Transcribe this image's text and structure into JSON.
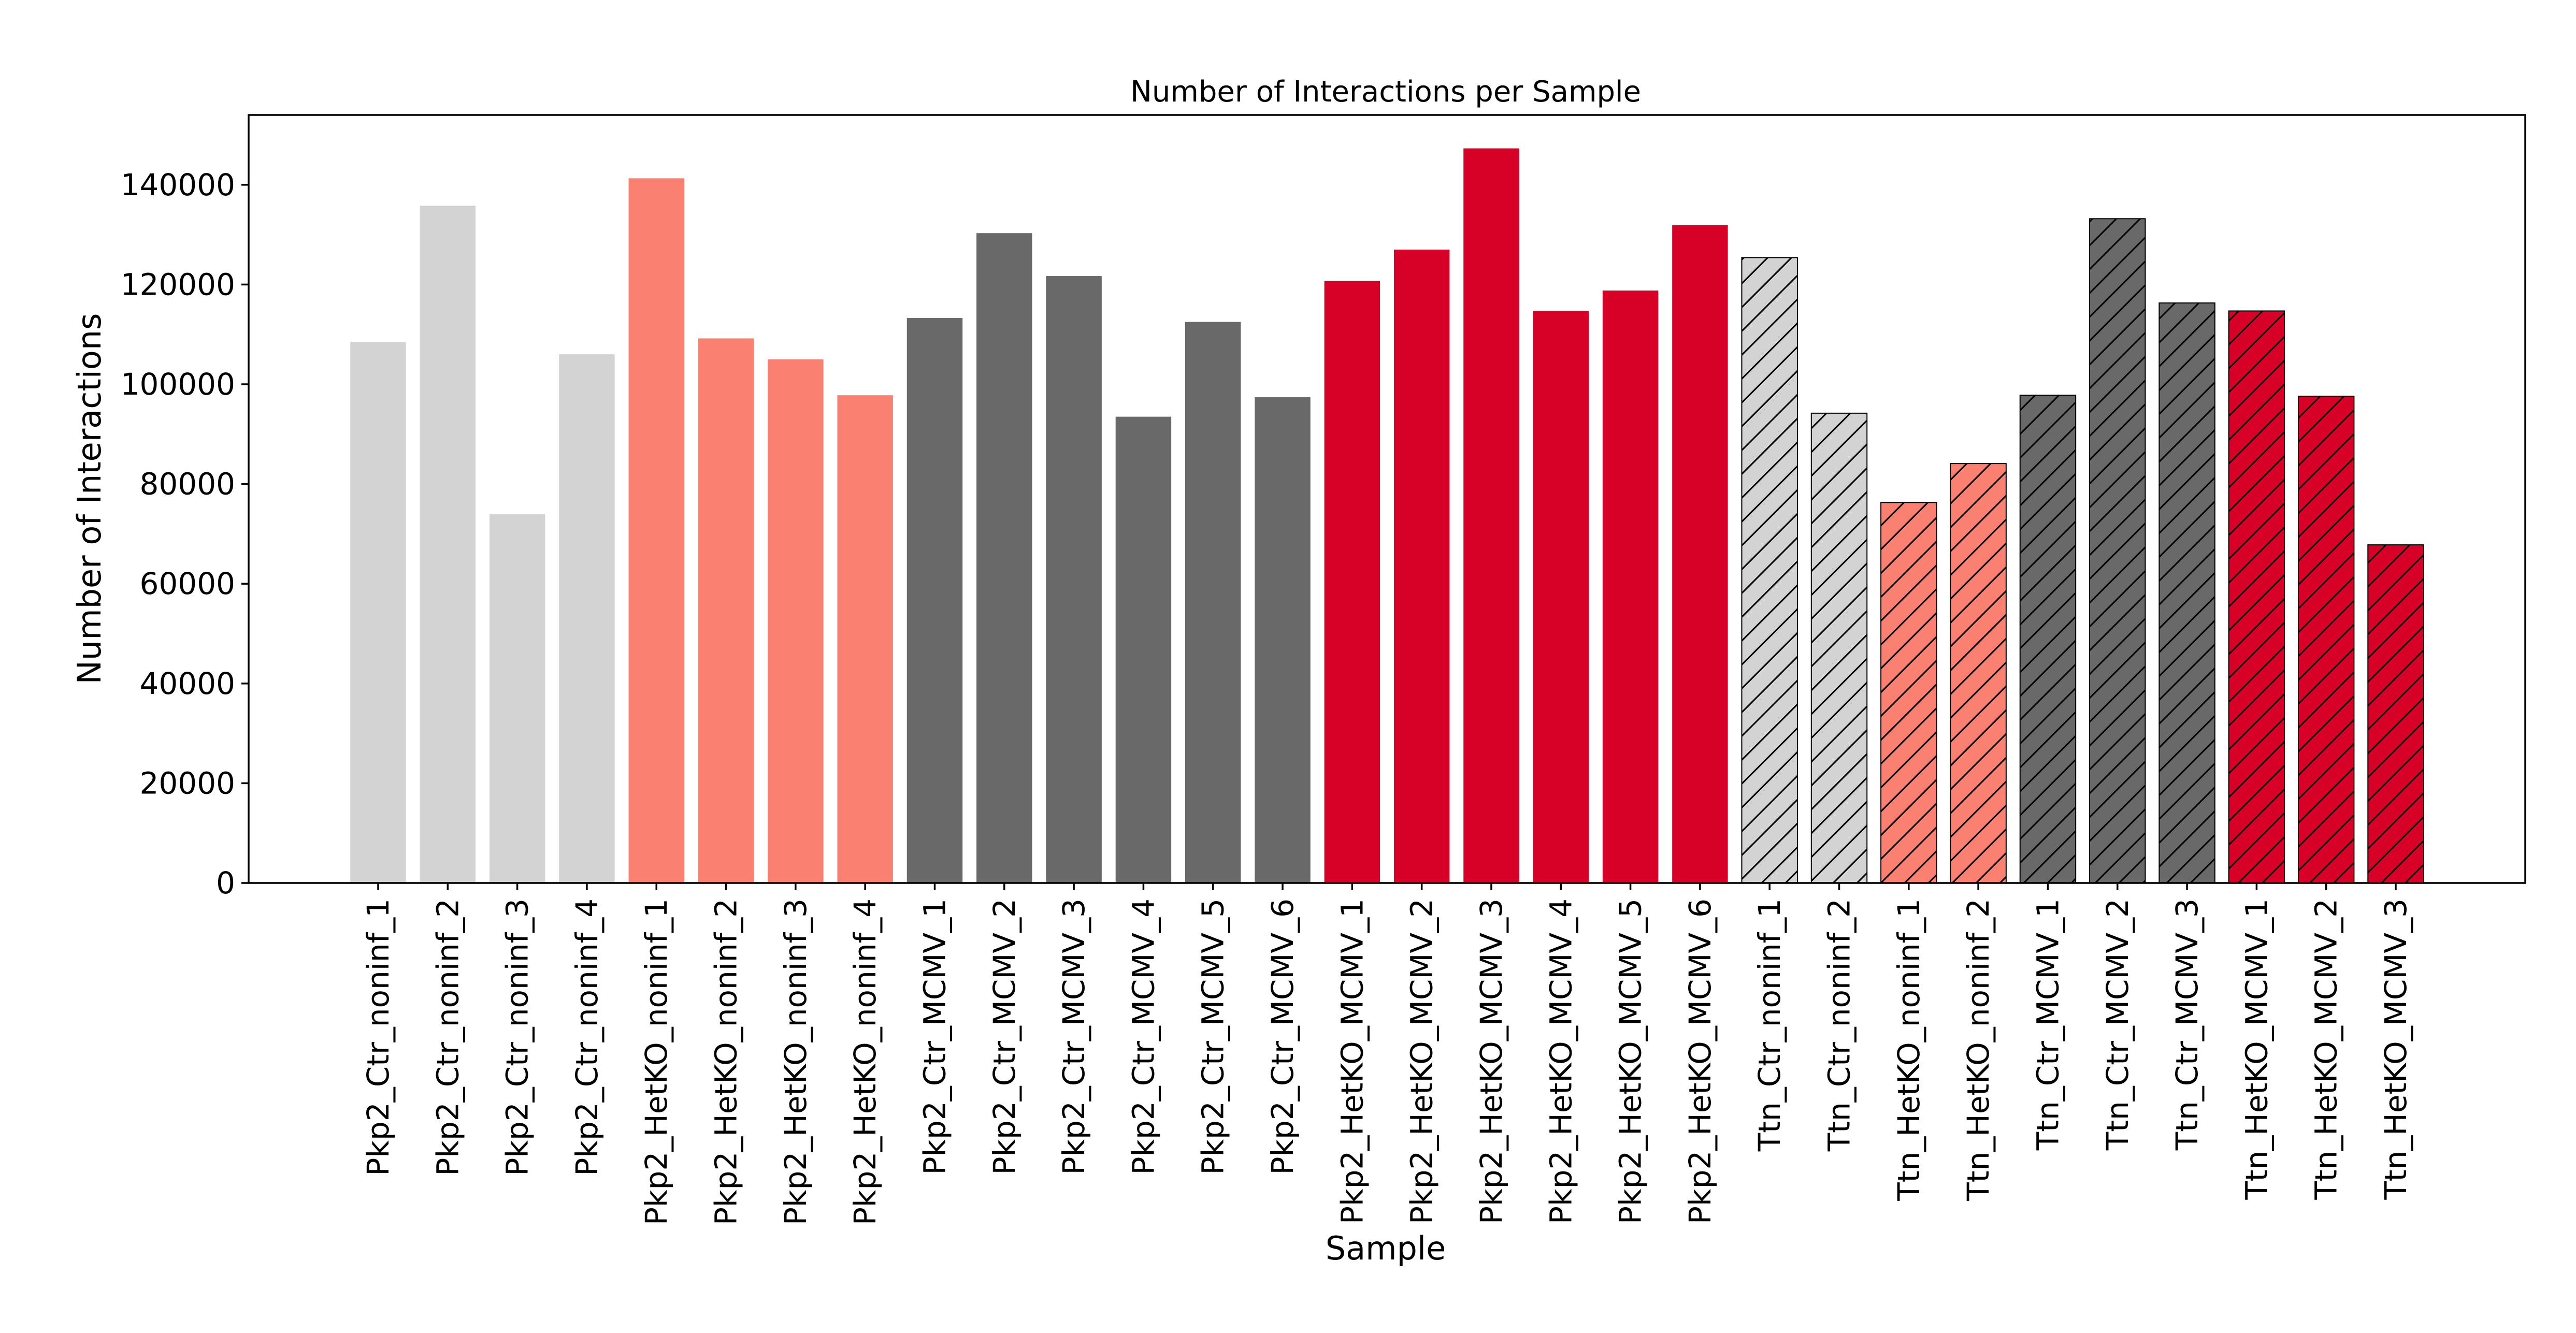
{
  "chart_data": {
    "type": "bar",
    "title": "Number of Interactions per Sample",
    "xlabel": "Sample",
    "ylabel": "Number of Interactions",
    "ylim": [
      0,
      154000
    ],
    "yticks": [
      0,
      20000,
      40000,
      60000,
      80000,
      100000,
      120000,
      140000
    ],
    "grid": false,
    "legend": "none",
    "colors": {
      "Ctr_noninf": "#d3d3d3",
      "HetKO_noninf": "#fa8072",
      "Ctr_MCMV": "#696969",
      "HetKO_MCMV": "#d70027",
      "hatch_stroke": "#000000"
    },
    "categories": [
      "Pkp2_Ctr_noninf_1",
      "Pkp2_Ctr_noninf_2",
      "Pkp2_Ctr_noninf_3",
      "Pkp2_Ctr_noninf_4",
      "Pkp2_HetKO_noninf_1",
      "Pkp2_HetKO_noninf_2",
      "Pkp2_HetKO_noninf_3",
      "Pkp2_HetKO_noninf_4",
      "Pkp2_Ctr_MCMV_1",
      "Pkp2_Ctr_MCMV_2",
      "Pkp2_Ctr_MCMV_3",
      "Pkp2_Ctr_MCMV_4",
      "Pkp2_Ctr_MCMV_5",
      "Pkp2_Ctr_MCMV_6",
      "Pkp2_HetKO_MCMV_1",
      "Pkp2_HetKO_MCMV_2",
      "Pkp2_HetKO_MCMV_3",
      "Pkp2_HetKO_MCMV_4",
      "Pkp2_HetKO_MCMV_5",
      "Pkp2_HetKO_MCMV_6",
      "Ttn_Ctr_noninf_1",
      "Ttn_Ctr_noninf_2",
      "Ttn_HetKO_noninf_1",
      "Ttn_HetKO_noninf_2",
      "Ttn_Ctr_MCMV_1",
      "Ttn_Ctr_MCMV_2",
      "Ttn_Ctr_MCMV_3",
      "Ttn_HetKO_MCMV_1",
      "Ttn_HetKO_MCMV_2",
      "Ttn_HetKO_MCMV_3"
    ],
    "values": [
      108500,
      135800,
      74000,
      106000,
      141300,
      109200,
      105000,
      97800,
      113300,
      130300,
      121700,
      93500,
      112500,
      97400,
      120700,
      127000,
      147300,
      114700,
      118800,
      131900,
      125400,
      94200,
      76300,
      84100,
      97800,
      133200,
      116300,
      114700,
      97600,
      67800
    ],
    "groups": [
      "Ctr_noninf",
      "Ctr_noninf",
      "Ctr_noninf",
      "Ctr_noninf",
      "HetKO_noninf",
      "HetKO_noninf",
      "HetKO_noninf",
      "HetKO_noninf",
      "Ctr_MCMV",
      "Ctr_MCMV",
      "Ctr_MCMV",
      "Ctr_MCMV",
      "Ctr_MCMV",
      "Ctr_MCMV",
      "HetKO_MCMV",
      "HetKO_MCMV",
      "HetKO_MCMV",
      "HetKO_MCMV",
      "HetKO_MCMV",
      "HetKO_MCMV",
      "Ctr_noninf",
      "Ctr_noninf",
      "HetKO_noninf",
      "HetKO_noninf",
      "Ctr_MCMV",
      "Ctr_MCMV",
      "Ctr_MCMV",
      "HetKO_MCMV",
      "HetKO_MCMV",
      "HetKO_MCMV"
    ],
    "hatched": [
      false,
      false,
      false,
      false,
      false,
      false,
      false,
      false,
      false,
      false,
      false,
      false,
      false,
      false,
      false,
      false,
      false,
      false,
      false,
      false,
      true,
      true,
      true,
      true,
      true,
      true,
      true,
      true,
      true,
      true
    ]
  }
}
